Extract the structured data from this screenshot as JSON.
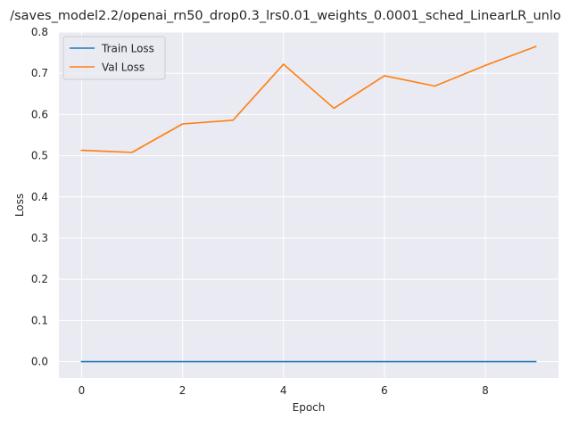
{
  "chart_data": {
    "type": "line",
    "title": "/saves_model2.2/openai_rn50_drop0.3_lrs0.01_weights_0.0001_sched_LinearLR_unlo",
    "xlabel": "Epoch",
    "ylabel": "Loss",
    "xlim": [
      -0.45,
      9.45
    ],
    "ylim": [
      -0.04,
      0.8
    ],
    "xticks": [
      0,
      2,
      4,
      6,
      8
    ],
    "yticks": [
      0.0,
      0.1,
      0.2,
      0.3,
      0.4,
      0.5,
      0.6,
      0.7,
      0.8
    ],
    "xtick_labels": [
      "0",
      "2",
      "4",
      "6",
      "8"
    ],
    "ytick_labels": [
      "0.0",
      "0.1",
      "0.2",
      "0.3",
      "0.4",
      "0.5",
      "0.6",
      "0.7",
      "0.8"
    ],
    "grid": true,
    "legend_position": "top-left",
    "x": [
      0,
      1,
      2,
      3,
      4,
      5,
      6,
      7,
      8,
      9
    ],
    "series": [
      {
        "name": "Train Loss",
        "color": "#1f77b4",
        "values": [
          0.0,
          0.0,
          0.0,
          0.0,
          0.0,
          0.0,
          0.0,
          0.0,
          0.0,
          0.0
        ]
      },
      {
        "name": "Val Loss",
        "color": "#ff7f0e",
        "values": [
          0.513,
          0.508,
          0.577,
          0.586,
          0.722,
          0.615,
          0.694,
          0.669,
          0.719,
          0.765
        ]
      }
    ]
  }
}
